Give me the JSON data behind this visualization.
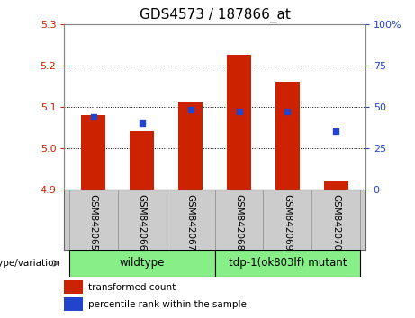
{
  "title": "GDS4573 / 187866_at",
  "samples": [
    "GSM842065",
    "GSM842066",
    "GSM842067",
    "GSM842068",
    "GSM842069",
    "GSM842070"
  ],
  "bar_bottom": 4.9,
  "bar_tops": [
    5.08,
    5.04,
    5.11,
    5.225,
    5.16,
    4.92
  ],
  "percentile_ranks": [
    44,
    40,
    48,
    47,
    47,
    35
  ],
  "ylim_left": [
    4.9,
    5.3
  ],
  "ylim_right": [
    0,
    100
  ],
  "yticks_left": [
    4.9,
    5.0,
    5.1,
    5.2,
    5.3
  ],
  "yticks_right": [
    0,
    25,
    50,
    75,
    100
  ],
  "right_tick_labels": [
    "0",
    "25",
    "50",
    "75",
    "100%"
  ],
  "bar_color": "#cc2200",
  "dot_color": "#2244cc",
  "left_tick_color": "#cc2200",
  "right_tick_color": "#2244cc",
  "wildtype_label": "wildtype",
  "mutant_label": "tdp-1(ok803lf) mutant",
  "group_color": "#88ee88",
  "genotype_label": "genotype/variation",
  "legend_items": [
    {
      "label": "transformed count",
      "color": "#cc2200"
    },
    {
      "label": "percentile rank within the sample",
      "color": "#2244cc"
    }
  ],
  "bar_width": 0.5,
  "plot_bg": "#ffffff",
  "label_bg": "#cccccc",
  "title_fontsize": 11,
  "tick_fontsize": 8,
  "label_fontsize": 7.5,
  "legend_fontsize": 7.5
}
